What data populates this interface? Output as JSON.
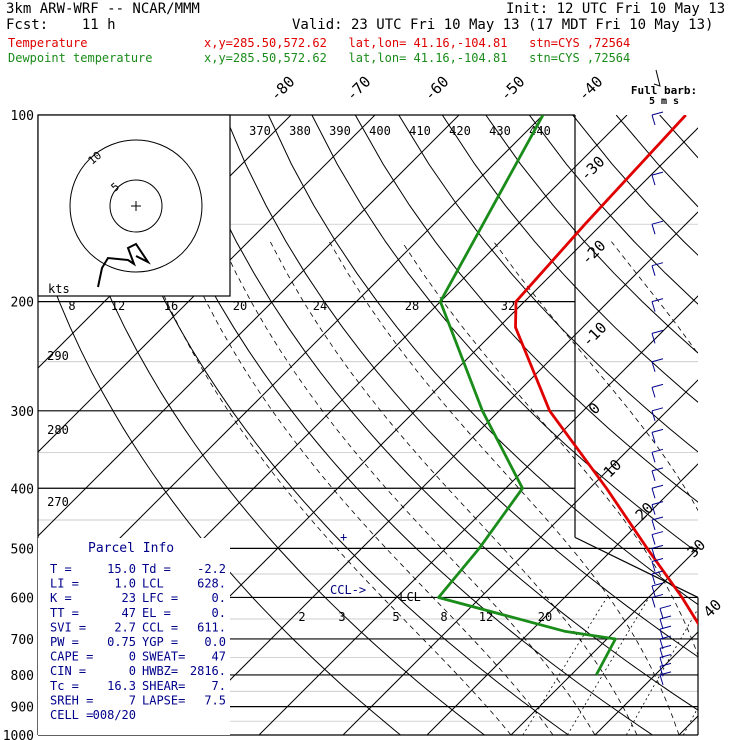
{
  "header": {
    "title": "3km ARW-WRF -- NCAR/MMM",
    "fcst": "Fcst:    11 h",
    "init": "Init: 12 UTC Fri 10 May 13",
    "valid": "Valid: 23 UTC Fri 10 May 13 (17 MDT Fri 10 May 13)",
    "temp_label": "Temperature",
    "temp_info": "x,y=285.50,572.62   lat,lon= 41.16,-104.81   stn=CYS ,72564",
    "dew_label": "Dewpoint temperature",
    "dew_info": "x,y=285.50,572.62   lat,lon= 41.16,-104.81   stn=CYS ,72564"
  },
  "colors": {
    "temperature": "#e00000",
    "dewpoint": "#1a8c1a",
    "barbs": "#00008b",
    "background": "#ffffff"
  },
  "chart_data": {
    "type": "line",
    "pressure_levels": [
      100,
      200,
      300,
      400,
      500,
      600,
      700,
      800,
      900,
      1000
    ],
    "skewed_isotherms": [
      "-80",
      "-70",
      "-60",
      "-50",
      "-40",
      "-30",
      "-20",
      "-10",
      "0",
      "10",
      "20",
      "30",
      "40"
    ],
    "theta_labels": [
      "370",
      "380",
      "390",
      "400",
      "410",
      "420",
      "430",
      "440"
    ],
    "theta_labels_left": [
      "290",
      "280",
      "270"
    ],
    "mixing_ratio_labels": [
      "2",
      "3",
      "5",
      "8",
      "12",
      "20"
    ],
    "series": [
      {
        "name": "Temperature",
        "points": [
          [
            800,
            8
          ],
          [
            760,
            6
          ],
          [
            700,
            2
          ],
          [
            600,
            -6
          ],
          [
            500,
            -16
          ],
          [
            400,
            -28
          ],
          [
            300,
            -44
          ],
          [
            220,
            -58
          ],
          [
            200,
            -61
          ],
          [
            150,
            -62
          ],
          [
            100,
            -63
          ]
        ]
      },
      {
        "name": "Dewpoint temperature",
        "points": [
          [
            800,
            -7
          ],
          [
            700,
            -9
          ],
          [
            680,
            -16
          ],
          [
            600,
            -35
          ],
          [
            500,
            -36
          ],
          [
            400,
            -38
          ],
          [
            300,
            -52
          ],
          [
            200,
            -70
          ],
          [
            100,
            -80
          ]
        ]
      }
    ],
    "markers": {
      "lcl": "-LCL",
      "ccl": "CCL->",
      "ca": "+"
    },
    "hodograph": {
      "kts_label": "kts",
      "ring_labels": [
        "5",
        "10"
      ],
      "speed_labels": [
        "8",
        "12",
        "16",
        "20",
        "24",
        "28",
        "32"
      ]
    },
    "barb_title": "Full barb:",
    "barb_unit": "5 m s",
    "parcel_info": {
      "title": "Parcel Info",
      "rows": [
        [
          "T  =",
          "15.0",
          "Td =",
          "-2.2"
        ],
        [
          "LI =",
          "1.0",
          "LCL",
          "628."
        ],
        [
          "K  =",
          "23",
          "LFC =",
          "0."
        ],
        [
          "TT =",
          "47",
          "EL =",
          "0."
        ],
        [
          "SVI =",
          "2.7",
          "CCL =",
          "611."
        ],
        [
          "PW =",
          "0.75",
          "YGP =",
          "0.0"
        ],
        [
          "CAPE =",
          "0",
          "SWEAT=",
          "47"
        ],
        [
          "CIN =",
          "0",
          "HWBZ=",
          "2816."
        ],
        [
          "Tc =",
          "16.3",
          "SHEAR=",
          "7."
        ],
        [
          "SREH =",
          "7",
          "LAPSE=",
          "7.5"
        ],
        [
          "CELL =",
          "008/20",
          "",
          ""
        ]
      ]
    }
  }
}
